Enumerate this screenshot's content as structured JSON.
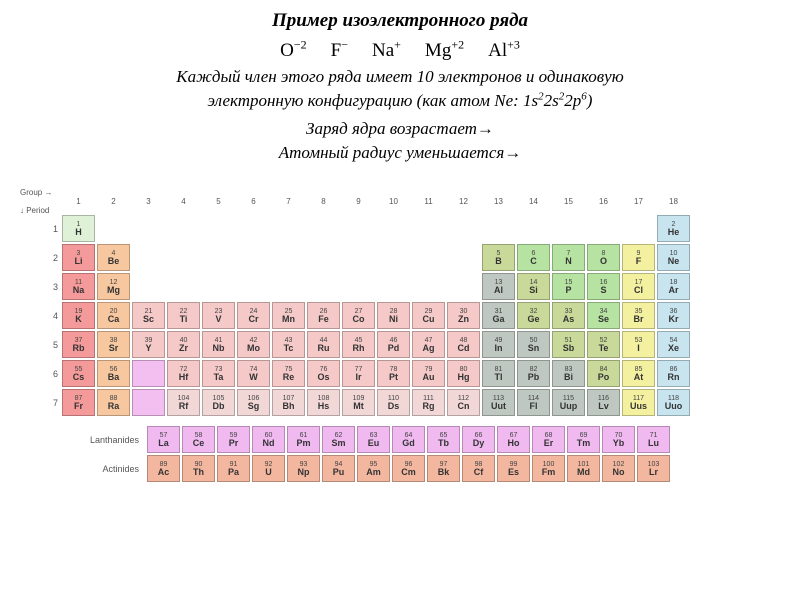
{
  "title": "Пример изоэлектронного ряда",
  "ions": [
    {
      "base": "O",
      "sup": "−2"
    },
    {
      "base": "F",
      "sup": "−"
    },
    {
      "base": "Na",
      "sup": "+"
    },
    {
      "base": "Mg",
      "sup": "+2"
    },
    {
      "base": "Al",
      "sup": "+3"
    }
  ],
  "desc_line1": "Каждый член этого ряда имеет 10 электронов  и одинаковую",
  "desc_line2_pre": "электронную конфигурацию (как атом Ne: 1s",
  "desc_line2_cfg": [
    [
      "2",
      "2s"
    ],
    [
      "2",
      "2p"
    ],
    [
      "6",
      ")"
    ]
  ],
  "arrow1": "Заряд ядра возрастает→",
  "arrow2": "Атомный радиус уменьшается→",
  "axis": {
    "group": "Group →",
    "period": "↓ Period"
  },
  "fblock_labels": {
    "lan": "Lanthanides",
    "act": "Actinides"
  },
  "colors": {
    "alkali": "#f59a9a",
    "alkaline": "#f7c8a0",
    "tm": "#f4c9c8",
    "tm_alt": "#f2d7d7",
    "post": "#bfc8c0",
    "metalloid": "#c9d99a",
    "nonmetal": "#b6e3a1",
    "halogen": "#f3f0a0",
    "noble": "#c7e4ef",
    "lant": "#f0baf0",
    "act": "#f3b79f",
    "h": "#dff2d8",
    "placeholder": "#f2bff0"
  },
  "elements": [
    {
      "p": 1,
      "g": 1,
      "n": 1,
      "s": "H",
      "c": "h"
    },
    {
      "p": 1,
      "g": 18,
      "n": 2,
      "s": "He",
      "c": "noble"
    },
    {
      "p": 2,
      "g": 1,
      "n": 3,
      "s": "Li",
      "c": "alkali"
    },
    {
      "p": 2,
      "g": 2,
      "n": 4,
      "s": "Be",
      "c": "alkaline"
    },
    {
      "p": 2,
      "g": 13,
      "n": 5,
      "s": "B",
      "c": "metalloid"
    },
    {
      "p": 2,
      "g": 14,
      "n": 6,
      "s": "C",
      "c": "nonmetal"
    },
    {
      "p": 2,
      "g": 15,
      "n": 7,
      "s": "N",
      "c": "nonmetal"
    },
    {
      "p": 2,
      "g": 16,
      "n": 8,
      "s": "O",
      "c": "nonmetal"
    },
    {
      "p": 2,
      "g": 17,
      "n": 9,
      "s": "F",
      "c": "halogen"
    },
    {
      "p": 2,
      "g": 18,
      "n": 10,
      "s": "Ne",
      "c": "noble"
    },
    {
      "p": 3,
      "g": 1,
      "n": 11,
      "s": "Na",
      "c": "alkali"
    },
    {
      "p": 3,
      "g": 2,
      "n": 12,
      "s": "Mg",
      "c": "alkaline"
    },
    {
      "p": 3,
      "g": 13,
      "n": 13,
      "s": "Al",
      "c": "post"
    },
    {
      "p": 3,
      "g": 14,
      "n": 14,
      "s": "Si",
      "c": "metalloid"
    },
    {
      "p": 3,
      "g": 15,
      "n": 15,
      "s": "P",
      "c": "nonmetal"
    },
    {
      "p": 3,
      "g": 16,
      "n": 16,
      "s": "S",
      "c": "nonmetal"
    },
    {
      "p": 3,
      "g": 17,
      "n": 17,
      "s": "Cl",
      "c": "halogen"
    },
    {
      "p": 3,
      "g": 18,
      "n": 18,
      "s": "Ar",
      "c": "noble"
    },
    {
      "p": 4,
      "g": 1,
      "n": 19,
      "s": "K",
      "c": "alkali"
    },
    {
      "p": 4,
      "g": 2,
      "n": 20,
      "s": "Ca",
      "c": "alkaline"
    },
    {
      "p": 4,
      "g": 3,
      "n": 21,
      "s": "Sc",
      "c": "tm"
    },
    {
      "p": 4,
      "g": 4,
      "n": 22,
      "s": "Ti",
      "c": "tm"
    },
    {
      "p": 4,
      "g": 5,
      "n": 23,
      "s": "V",
      "c": "tm"
    },
    {
      "p": 4,
      "g": 6,
      "n": 24,
      "s": "Cr",
      "c": "tm"
    },
    {
      "p": 4,
      "g": 7,
      "n": 25,
      "s": "Mn",
      "c": "tm"
    },
    {
      "p": 4,
      "g": 8,
      "n": 26,
      "s": "Fe",
      "c": "tm"
    },
    {
      "p": 4,
      "g": 9,
      "n": 27,
      "s": "Co",
      "c": "tm"
    },
    {
      "p": 4,
      "g": 10,
      "n": 28,
      "s": "Ni",
      "c": "tm"
    },
    {
      "p": 4,
      "g": 11,
      "n": 29,
      "s": "Cu",
      "c": "tm"
    },
    {
      "p": 4,
      "g": 12,
      "n": 30,
      "s": "Zn",
      "c": "tm"
    },
    {
      "p": 4,
      "g": 13,
      "n": 31,
      "s": "Ga",
      "c": "post"
    },
    {
      "p": 4,
      "g": 14,
      "n": 32,
      "s": "Ge",
      "c": "metalloid"
    },
    {
      "p": 4,
      "g": 15,
      "n": 33,
      "s": "As",
      "c": "metalloid"
    },
    {
      "p": 4,
      "g": 16,
      "n": 34,
      "s": "Se",
      "c": "nonmetal"
    },
    {
      "p": 4,
      "g": 17,
      "n": 35,
      "s": "Br",
      "c": "halogen"
    },
    {
      "p": 4,
      "g": 18,
      "n": 36,
      "s": "Kr",
      "c": "noble"
    },
    {
      "p": 5,
      "g": 1,
      "n": 37,
      "s": "Rb",
      "c": "alkali"
    },
    {
      "p": 5,
      "g": 2,
      "n": 38,
      "s": "Sr",
      "c": "alkaline"
    },
    {
      "p": 5,
      "g": 3,
      "n": 39,
      "s": "Y",
      "c": "tm"
    },
    {
      "p": 5,
      "g": 4,
      "n": 40,
      "s": "Zr",
      "c": "tm"
    },
    {
      "p": 5,
      "g": 5,
      "n": 41,
      "s": "Nb",
      "c": "tm"
    },
    {
      "p": 5,
      "g": 6,
      "n": 42,
      "s": "Mo",
      "c": "tm"
    },
    {
      "p": 5,
      "g": 7,
      "n": 43,
      "s": "Tc",
      "c": "tm"
    },
    {
      "p": 5,
      "g": 8,
      "n": 44,
      "s": "Ru",
      "c": "tm"
    },
    {
      "p": 5,
      "g": 9,
      "n": 45,
      "s": "Rh",
      "c": "tm"
    },
    {
      "p": 5,
      "g": 10,
      "n": 46,
      "s": "Pd",
      "c": "tm"
    },
    {
      "p": 5,
      "g": 11,
      "n": 47,
      "s": "Ag",
      "c": "tm"
    },
    {
      "p": 5,
      "g": 12,
      "n": 48,
      "s": "Cd",
      "c": "tm"
    },
    {
      "p": 5,
      "g": 13,
      "n": 49,
      "s": "In",
      "c": "post"
    },
    {
      "p": 5,
      "g": 14,
      "n": 50,
      "s": "Sn",
      "c": "post"
    },
    {
      "p": 5,
      "g": 15,
      "n": 51,
      "s": "Sb",
      "c": "metalloid"
    },
    {
      "p": 5,
      "g": 16,
      "n": 52,
      "s": "Te",
      "c": "metalloid"
    },
    {
      "p": 5,
      "g": 17,
      "n": 53,
      "s": "I",
      "c": "halogen"
    },
    {
      "p": 5,
      "g": 18,
      "n": 54,
      "s": "Xe",
      "c": "noble"
    },
    {
      "p": 6,
      "g": 1,
      "n": 55,
      "s": "Cs",
      "c": "alkali"
    },
    {
      "p": 6,
      "g": 2,
      "n": 56,
      "s": "Ba",
      "c": "alkaline"
    },
    {
      "p": 6,
      "g": 3,
      "n": 0,
      "s": "",
      "c": "placeholder"
    },
    {
      "p": 6,
      "g": 4,
      "n": 72,
      "s": "Hf",
      "c": "tm"
    },
    {
      "p": 6,
      "g": 5,
      "n": 73,
      "s": "Ta",
      "c": "tm"
    },
    {
      "p": 6,
      "g": 6,
      "n": 74,
      "s": "W",
      "c": "tm"
    },
    {
      "p": 6,
      "g": 7,
      "n": 75,
      "s": "Re",
      "c": "tm"
    },
    {
      "p": 6,
      "g": 8,
      "n": 76,
      "s": "Os",
      "c": "tm"
    },
    {
      "p": 6,
      "g": 9,
      "n": 77,
      "s": "Ir",
      "c": "tm"
    },
    {
      "p": 6,
      "g": 10,
      "n": 78,
      "s": "Pt",
      "c": "tm"
    },
    {
      "p": 6,
      "g": 11,
      "n": 79,
      "s": "Au",
      "c": "tm"
    },
    {
      "p": 6,
      "g": 12,
      "n": 80,
      "s": "Hg",
      "c": "tm"
    },
    {
      "p": 6,
      "g": 13,
      "n": 81,
      "s": "Tl",
      "c": "post"
    },
    {
      "p": 6,
      "g": 14,
      "n": 82,
      "s": "Pb",
      "c": "post"
    },
    {
      "p": 6,
      "g": 15,
      "n": 83,
      "s": "Bi",
      "c": "post"
    },
    {
      "p": 6,
      "g": 16,
      "n": 84,
      "s": "Po",
      "c": "metalloid"
    },
    {
      "p": 6,
      "g": 17,
      "n": 85,
      "s": "At",
      "c": "halogen"
    },
    {
      "p": 6,
      "g": 18,
      "n": 86,
      "s": "Rn",
      "c": "noble"
    },
    {
      "p": 7,
      "g": 1,
      "n": 87,
      "s": "Fr",
      "c": "alkali"
    },
    {
      "p": 7,
      "g": 2,
      "n": 88,
      "s": "Ra",
      "c": "alkaline"
    },
    {
      "p": 7,
      "g": 3,
      "n": 0,
      "s": "",
      "c": "placeholder"
    },
    {
      "p": 7,
      "g": 4,
      "n": 104,
      "s": "Rf",
      "c": "tm_alt"
    },
    {
      "p": 7,
      "g": 5,
      "n": 105,
      "s": "Db",
      "c": "tm_alt"
    },
    {
      "p": 7,
      "g": 6,
      "n": 106,
      "s": "Sg",
      "c": "tm_alt"
    },
    {
      "p": 7,
      "g": 7,
      "n": 107,
      "s": "Bh",
      "c": "tm_alt"
    },
    {
      "p": 7,
      "g": 8,
      "n": 108,
      "s": "Hs",
      "c": "tm_alt"
    },
    {
      "p": 7,
      "g": 9,
      "n": 109,
      "s": "Mt",
      "c": "tm_alt"
    },
    {
      "p": 7,
      "g": 10,
      "n": 110,
      "s": "Ds",
      "c": "tm_alt"
    },
    {
      "p": 7,
      "g": 11,
      "n": 111,
      "s": "Rg",
      "c": "tm_alt"
    },
    {
      "p": 7,
      "g": 12,
      "n": 112,
      "s": "Cn",
      "c": "tm_alt"
    },
    {
      "p": 7,
      "g": 13,
      "n": 113,
      "s": "Uut",
      "c": "post"
    },
    {
      "p": 7,
      "g": 14,
      "n": 114,
      "s": "Fl",
      "c": "post"
    },
    {
      "p": 7,
      "g": 15,
      "n": 115,
      "s": "Uup",
      "c": "post"
    },
    {
      "p": 7,
      "g": 16,
      "n": 116,
      "s": "Lv",
      "c": "post"
    },
    {
      "p": 7,
      "g": 17,
      "n": 117,
      "s": "Uus",
      "c": "halogen"
    },
    {
      "p": 7,
      "g": 18,
      "n": 118,
      "s": "Uuo",
      "c": "noble"
    }
  ],
  "lanthanides": [
    {
      "n": 57,
      "s": "La"
    },
    {
      "n": 58,
      "s": "Ce"
    },
    {
      "n": 59,
      "s": "Pr"
    },
    {
      "n": 60,
      "s": "Nd"
    },
    {
      "n": 61,
      "s": "Pm"
    },
    {
      "n": 62,
      "s": "Sm"
    },
    {
      "n": 63,
      "s": "Eu"
    },
    {
      "n": 64,
      "s": "Gd"
    },
    {
      "n": 65,
      "s": "Tb"
    },
    {
      "n": 66,
      "s": "Dy"
    },
    {
      "n": 67,
      "s": "Ho"
    },
    {
      "n": 68,
      "s": "Er"
    },
    {
      "n": 69,
      "s": "Tm"
    },
    {
      "n": 70,
      "s": "Yb"
    },
    {
      "n": 71,
      "s": "Lu"
    }
  ],
  "actinides": [
    {
      "n": 89,
      "s": "Ac"
    },
    {
      "n": 90,
      "s": "Th"
    },
    {
      "n": 91,
      "s": "Pa"
    },
    {
      "n": 92,
      "s": "U"
    },
    {
      "n": 93,
      "s": "Np"
    },
    {
      "n": 94,
      "s": "Pu"
    },
    {
      "n": 95,
      "s": "Am"
    },
    {
      "n": 96,
      "s": "Cm"
    },
    {
      "n": 97,
      "s": "Bk"
    },
    {
      "n": 98,
      "s": "Cf"
    },
    {
      "n": 99,
      "s": "Es"
    },
    {
      "n": 100,
      "s": "Fm"
    },
    {
      "n": 101,
      "s": "Md"
    },
    {
      "n": 102,
      "s": "No"
    },
    {
      "n": 103,
      "s": "Lr"
    }
  ]
}
